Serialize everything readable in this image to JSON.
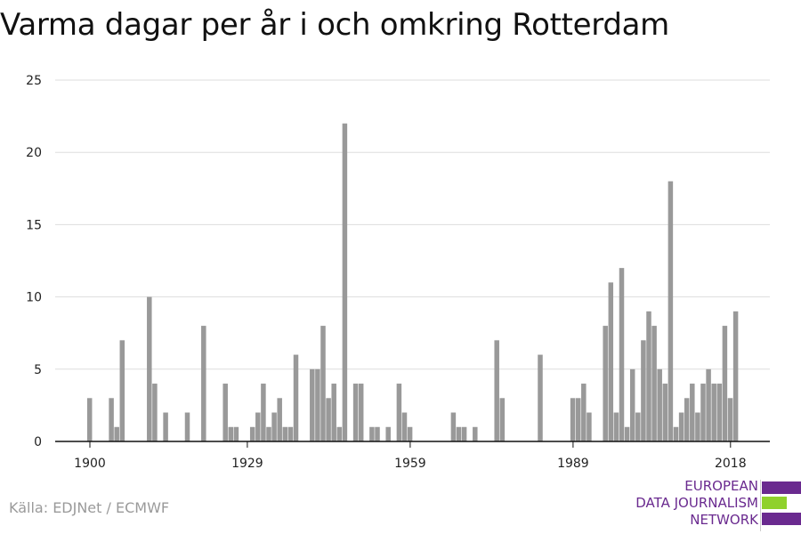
{
  "title": "Varma dagar per år i och omkring Rotterdam",
  "source": "Källa: EDJNet / ECMWF",
  "logo": {
    "lines": [
      "EUROPEAN",
      "DATA JOURNALISM",
      "NETWORK"
    ],
    "colors": {
      "purple": "#6a2a8f",
      "green": "#8fd12d"
    }
  },
  "chart_data": {
    "type": "bar",
    "title": "Varma dagar per år i och omkring Rotterdam",
    "xlabel": "",
    "ylabel": "",
    "x": [
      1900,
      1901,
      1902,
      1903,
      1904,
      1905,
      1906,
      1907,
      1908,
      1909,
      1910,
      1911,
      1912,
      1913,
      1914,
      1915,
      1916,
      1917,
      1918,
      1919,
      1920,
      1921,
      1922,
      1923,
      1924,
      1925,
      1926,
      1927,
      1928,
      1929,
      1930,
      1931,
      1932,
      1933,
      1934,
      1935,
      1936,
      1937,
      1938,
      1939,
      1940,
      1941,
      1942,
      1943,
      1944,
      1945,
      1946,
      1947,
      1948,
      1949,
      1950,
      1951,
      1952,
      1953,
      1954,
      1955,
      1956,
      1957,
      1958,
      1959,
      1960,
      1961,
      1962,
      1963,
      1964,
      1965,
      1966,
      1967,
      1968,
      1969,
      1970,
      1971,
      1972,
      1973,
      1974,
      1975,
      1976,
      1977,
      1978,
      1979,
      1980,
      1981,
      1982,
      1983,
      1984,
      1985,
      1986,
      1987,
      1988,
      1989,
      1990,
      1991,
      1992,
      1993,
      1994,
      1995,
      1996,
      1997,
      1998,
      1999,
      2000,
      2001,
      2002,
      2003,
      2004,
      2005,
      2006,
      2007,
      2008,
      2009,
      2010,
      2011,
      2012,
      2013,
      2014,
      2015,
      2016,
      2017,
      2018,
      2019
    ],
    "values": [
      3,
      0,
      0,
      0,
      3,
      1,
      7,
      0,
      0,
      0,
      0,
      10,
      4,
      0,
      2,
      0,
      0,
      0,
      2,
      0,
      0,
      8,
      0,
      0,
      0,
      4,
      1,
      1,
      0,
      0,
      1,
      2,
      4,
      1,
      2,
      3,
      1,
      1,
      6,
      0,
      0,
      5,
      5,
      8,
      3,
      4,
      1,
      22,
      0,
      4,
      4,
      0,
      1,
      1,
      0,
      1,
      0,
      4,
      2,
      1,
      0,
      0,
      0,
      0,
      0,
      0,
      0,
      2,
      1,
      1,
      0,
      1,
      0,
      0,
      0,
      7,
      3,
      0,
      0,
      0,
      0,
      0,
      0,
      6,
      0,
      0,
      0,
      0,
      0,
      3,
      3,
      4,
      2,
      0,
      0,
      8,
      11,
      2,
      12,
      1,
      5,
      2,
      7,
      9,
      8,
      5,
      4,
      18,
      1,
      2,
      3,
      4,
      2,
      4,
      5,
      4,
      4,
      8,
      3,
      9
    ],
    "xticks": [
      1900,
      1929,
      1959,
      1989,
      2018
    ],
    "yticks": [
      0,
      5,
      10,
      15,
      20,
      25
    ],
    "ylim": [
      0,
      25
    ],
    "grid": true,
    "bar_color": "#999999"
  }
}
